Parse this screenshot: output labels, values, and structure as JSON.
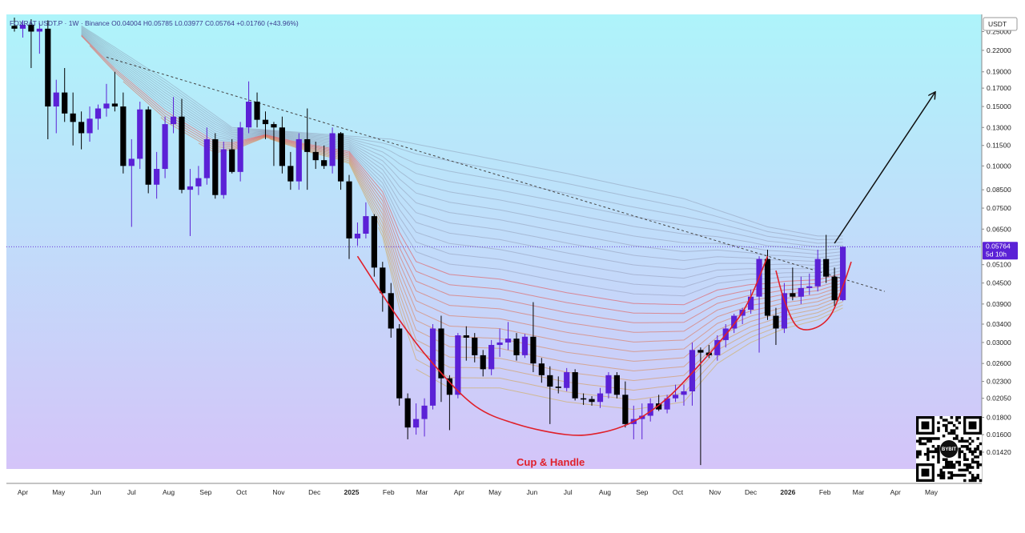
{
  "legend": {
    "symbol": "FOXRAT USDT.P",
    "timeframe": "1W",
    "exchange": "Binance",
    "open": "0.04004",
    "high": "0.05785",
    "low": "0.03977",
    "close": "0.05764",
    "change": "+0.01760 (+43.96%)"
  },
  "price_axis": {
    "unit": "USDT",
    "last_price": "0.05764",
    "countdown": "5d 10h"
  },
  "annotation": {
    "pattern_label": "Cup & Handle"
  },
  "qr_badge": {
    "logo_text": "BYBIT"
  },
  "colors": {
    "bull": "#5b21d6",
    "bear": "#000000",
    "bg_top": "#aef4fa",
    "bg_bottom": "#d4c4f9",
    "cup_curve": "#e0202a",
    "trendline": "#444444",
    "last_price_tag": "#5b21d6"
  },
  "chart_data": {
    "type": "candlestick",
    "interval": "1W",
    "x_start": "2024-03-25",
    "y_scale": "log",
    "y_range": [
      0.0128,
      0.275
    ],
    "grid": false,
    "y_ticks": [
      "0.25000",
      "0.22000",
      "0.19000",
      "0.17000",
      "0.15000",
      "0.13000",
      "0.11500",
      "0.10000",
      "0.08500",
      "0.07500",
      "0.06500",
      "0.05100",
      "0.04500",
      "0.03900",
      "0.03400",
      "0.03000",
      "0.02600",
      "0.02300",
      "0.02050",
      "0.01800",
      "0.01600",
      "0.01420"
    ],
    "x_ticks": [
      {
        "label": "Apr",
        "date": "2024-04-01",
        "bold": false
      },
      {
        "label": "May",
        "date": "2024-05-01",
        "bold": false
      },
      {
        "label": "Jun",
        "date": "2024-06-01",
        "bold": false
      },
      {
        "label": "Jul",
        "date": "2024-07-01",
        "bold": false
      },
      {
        "label": "Aug",
        "date": "2024-08-01",
        "bold": false
      },
      {
        "label": "Sep",
        "date": "2024-09-01",
        "bold": false
      },
      {
        "label": "Oct",
        "date": "2024-10-01",
        "bold": false
      },
      {
        "label": "Nov",
        "date": "2024-11-01",
        "bold": false
      },
      {
        "label": "Dec",
        "date": "2024-12-01",
        "bold": false
      },
      {
        "label": "2025",
        "date": "2025-01-01",
        "bold": true
      },
      {
        "label": "Feb",
        "date": "2025-02-01",
        "bold": false
      },
      {
        "label": "Mar",
        "date": "2025-03-01",
        "bold": false
      },
      {
        "label": "Apr",
        "date": "2025-04-01",
        "bold": false
      },
      {
        "label": "May",
        "date": "2025-05-01",
        "bold": false
      },
      {
        "label": "Jun",
        "date": "2025-06-01",
        "bold": false
      },
      {
        "label": "Jul",
        "date": "2025-07-01",
        "bold": false
      },
      {
        "label": "Aug",
        "date": "2025-08-01",
        "bold": false
      },
      {
        "label": "Sep",
        "date": "2025-09-01",
        "bold": false
      },
      {
        "label": "Oct",
        "date": "2025-10-01",
        "bold": false
      },
      {
        "label": "Nov",
        "date": "2025-11-01",
        "bold": false
      },
      {
        "label": "Dec",
        "date": "2025-12-01",
        "bold": false
      },
      {
        "label": "2026",
        "date": "2026-01-01",
        "bold": true
      },
      {
        "label": "Feb",
        "date": "2026-02-01",
        "bold": false
      },
      {
        "label": "Mar",
        "date": "2026-03-01",
        "bold": false
      },
      {
        "label": "Apr",
        "date": "2026-04-01",
        "bold": false
      },
      {
        "label": "May",
        "date": "2026-05-01",
        "bold": false
      }
    ],
    "candles": [
      {
        "o": 0.26,
        "h": 0.275,
        "l": 0.25,
        "c": 0.255
      },
      {
        "o": 0.255,
        "h": 0.27,
        "l": 0.24,
        "c": 0.262
      },
      {
        "o": 0.262,
        "h": 0.272,
        "l": 0.195,
        "c": 0.25
      },
      {
        "o": 0.25,
        "h": 0.265,
        "l": 0.215,
        "c": 0.255
      },
      {
        "o": 0.255,
        "h": 0.27,
        "l": 0.12,
        "c": 0.15
      },
      {
        "o": 0.15,
        "h": 0.18,
        "l": 0.125,
        "c": 0.165
      },
      {
        "o": 0.165,
        "h": 0.195,
        "l": 0.135,
        "c": 0.143
      },
      {
        "o": 0.143,
        "h": 0.165,
        "l": 0.115,
        "c": 0.135
      },
      {
        "o": 0.135,
        "h": 0.145,
        "l": 0.112,
        "c": 0.125
      },
      {
        "o": 0.125,
        "h": 0.15,
        "l": 0.118,
        "c": 0.138
      },
      {
        "o": 0.138,
        "h": 0.152,
        "l": 0.128,
        "c": 0.148
      },
      {
        "o": 0.148,
        "h": 0.175,
        "l": 0.14,
        "c": 0.153
      },
      {
        "o": 0.153,
        "h": 0.19,
        "l": 0.145,
        "c": 0.15
      },
      {
        "o": 0.15,
        "h": 0.165,
        "l": 0.095,
        "c": 0.1
      },
      {
        "o": 0.1,
        "h": 0.12,
        "l": 0.066,
        "c": 0.105
      },
      {
        "o": 0.105,
        "h": 0.155,
        "l": 0.098,
        "c": 0.147
      },
      {
        "o": 0.147,
        "h": 0.15,
        "l": 0.083,
        "c": 0.088
      },
      {
        "o": 0.088,
        "h": 0.11,
        "l": 0.08,
        "c": 0.098
      },
      {
        "o": 0.098,
        "h": 0.14,
        "l": 0.092,
        "c": 0.133
      },
      {
        "o": 0.133,
        "h": 0.16,
        "l": 0.125,
        "c": 0.14
      },
      {
        "o": 0.14,
        "h": 0.158,
        "l": 0.083,
        "c": 0.085
      },
      {
        "o": 0.085,
        "h": 0.098,
        "l": 0.062,
        "c": 0.087
      },
      {
        "o": 0.087,
        "h": 0.1,
        "l": 0.082,
        "c": 0.092
      },
      {
        "o": 0.092,
        "h": 0.13,
        "l": 0.088,
        "c": 0.12
      },
      {
        "o": 0.12,
        "h": 0.125,
        "l": 0.08,
        "c": 0.082
      },
      {
        "o": 0.082,
        "h": 0.118,
        "l": 0.08,
        "c": 0.112
      },
      {
        "o": 0.112,
        "h": 0.12,
        "l": 0.095,
        "c": 0.096
      },
      {
        "o": 0.096,
        "h": 0.135,
        "l": 0.09,
        "c": 0.13
      },
      {
        "o": 0.13,
        "h": 0.178,
        "l": 0.125,
        "c": 0.155
      },
      {
        "o": 0.155,
        "h": 0.165,
        "l": 0.13,
        "c": 0.137
      },
      {
        "o": 0.137,
        "h": 0.145,
        "l": 0.12,
        "c": 0.133
      },
      {
        "o": 0.133,
        "h": 0.135,
        "l": 0.1,
        "c": 0.13
      },
      {
        "o": 0.13,
        "h": 0.14,
        "l": 0.095,
        "c": 0.1
      },
      {
        "o": 0.1,
        "h": 0.11,
        "l": 0.085,
        "c": 0.09
      },
      {
        "o": 0.09,
        "h": 0.125,
        "l": 0.085,
        "c": 0.12
      },
      {
        "o": 0.12,
        "h": 0.148,
        "l": 0.085,
        "c": 0.11
      },
      {
        "o": 0.11,
        "h": 0.118,
        "l": 0.098,
        "c": 0.104
      },
      {
        "o": 0.104,
        "h": 0.115,
        "l": 0.098,
        "c": 0.1
      },
      {
        "o": 0.1,
        "h": 0.13,
        "l": 0.095,
        "c": 0.125
      },
      {
        "o": 0.125,
        "h": 0.126,
        "l": 0.085,
        "c": 0.09
      },
      {
        "o": 0.09,
        "h": 0.094,
        "l": 0.053,
        "c": 0.061
      },
      {
        "o": 0.061,
        "h": 0.068,
        "l": 0.058,
        "c": 0.063
      },
      {
        "o": 0.063,
        "h": 0.078,
        "l": 0.061,
        "c": 0.071
      },
      {
        "o": 0.071,
        "h": 0.072,
        "l": 0.047,
        "c": 0.05
      },
      {
        "o": 0.05,
        "h": 0.052,
        "l": 0.037,
        "c": 0.042
      },
      {
        "o": 0.042,
        "h": 0.045,
        "l": 0.031,
        "c": 0.033
      },
      {
        "o": 0.033,
        "h": 0.034,
        "l": 0.0195,
        "c": 0.0205
      },
      {
        "o": 0.0205,
        "h": 0.0212,
        "l": 0.0155,
        "c": 0.0168
      },
      {
        "o": 0.0168,
        "h": 0.0198,
        "l": 0.016,
        "c": 0.0178
      },
      {
        "o": 0.0178,
        "h": 0.0205,
        "l": 0.0158,
        "c": 0.0195
      },
      {
        "o": 0.0195,
        "h": 0.034,
        "l": 0.019,
        "c": 0.033
      },
      {
        "o": 0.033,
        "h": 0.036,
        "l": 0.02,
        "c": 0.0235
      },
      {
        "o": 0.0235,
        "h": 0.024,
        "l": 0.0165,
        "c": 0.021
      },
      {
        "o": 0.021,
        "h": 0.032,
        "l": 0.0205,
        "c": 0.0315
      },
      {
        "o": 0.0315,
        "h": 0.0335,
        "l": 0.0265,
        "c": 0.031
      },
      {
        "o": 0.031,
        "h": 0.032,
        "l": 0.0262,
        "c": 0.0275
      },
      {
        "o": 0.0275,
        "h": 0.0285,
        "l": 0.0238,
        "c": 0.025
      },
      {
        "o": 0.025,
        "h": 0.0305,
        "l": 0.024,
        "c": 0.0295
      },
      {
        "o": 0.0295,
        "h": 0.033,
        "l": 0.0272,
        "c": 0.03
      },
      {
        "o": 0.03,
        "h": 0.0345,
        "l": 0.0285,
        "c": 0.0308
      },
      {
        "o": 0.0308,
        "h": 0.032,
        "l": 0.0265,
        "c": 0.0275
      },
      {
        "o": 0.0275,
        "h": 0.0318,
        "l": 0.027,
        "c": 0.0312
      },
      {
        "o": 0.0312,
        "h": 0.0395,
        "l": 0.0245,
        "c": 0.026
      },
      {
        "o": 0.026,
        "h": 0.027,
        "l": 0.0228,
        "c": 0.024
      },
      {
        "o": 0.024,
        "h": 0.0255,
        "l": 0.0172,
        "c": 0.0222
      },
      {
        "o": 0.0222,
        "h": 0.0238,
        "l": 0.0212,
        "c": 0.022
      },
      {
        "o": 0.022,
        "h": 0.0252,
        "l": 0.0215,
        "c": 0.0245
      },
      {
        "o": 0.0245,
        "h": 0.025,
        "l": 0.0202,
        "c": 0.0205
      },
      {
        "o": 0.0205,
        "h": 0.0212,
        "l": 0.0196,
        "c": 0.0204
      },
      {
        "o": 0.0204,
        "h": 0.0208,
        "l": 0.0195,
        "c": 0.02
      },
      {
        "o": 0.02,
        "h": 0.022,
        "l": 0.0192,
        "c": 0.0212
      },
      {
        "o": 0.0212,
        "h": 0.0245,
        "l": 0.0205,
        "c": 0.024
      },
      {
        "o": 0.024,
        "h": 0.0245,
        "l": 0.0205,
        "c": 0.021
      },
      {
        "o": 0.021,
        "h": 0.023,
        "l": 0.0168,
        "c": 0.0172
      },
      {
        "o": 0.0172,
        "h": 0.0195,
        "l": 0.0155,
        "c": 0.0178
      },
      {
        "o": 0.0178,
        "h": 0.0198,
        "l": 0.0155,
        "c": 0.0182
      },
      {
        "o": 0.0182,
        "h": 0.0205,
        "l": 0.0175,
        "c": 0.0198
      },
      {
        "o": 0.0198,
        "h": 0.021,
        "l": 0.0188,
        "c": 0.019
      },
      {
        "o": 0.019,
        "h": 0.021,
        "l": 0.0185,
        "c": 0.0205
      },
      {
        "o": 0.0205,
        "h": 0.0225,
        "l": 0.02,
        "c": 0.021
      },
      {
        "o": 0.021,
        "h": 0.0225,
        "l": 0.0195,
        "c": 0.0215
      },
      {
        "o": 0.0215,
        "h": 0.03,
        "l": 0.0195,
        "c": 0.0285
      },
      {
        "o": 0.0285,
        "h": 0.029,
        "l": 0.013,
        "c": 0.028
      },
      {
        "o": 0.028,
        "h": 0.0295,
        "l": 0.027,
        "c": 0.0275
      },
      {
        "o": 0.0275,
        "h": 0.0315,
        "l": 0.0265,
        "c": 0.0305
      },
      {
        "o": 0.0305,
        "h": 0.034,
        "l": 0.029,
        "c": 0.033
      },
      {
        "o": 0.033,
        "h": 0.0365,
        "l": 0.032,
        "c": 0.036
      },
      {
        "o": 0.036,
        "h": 0.038,
        "l": 0.034,
        "c": 0.0375
      },
      {
        "o": 0.0375,
        "h": 0.043,
        "l": 0.0365,
        "c": 0.041
      },
      {
        "o": 0.041,
        "h": 0.054,
        "l": 0.028,
        "c": 0.053
      },
      {
        "o": 0.053,
        "h": 0.0565,
        "l": 0.035,
        "c": 0.036
      },
      {
        "o": 0.036,
        "h": 0.038,
        "l": 0.0295,
        "c": 0.033
      },
      {
        "o": 0.033,
        "h": 0.045,
        "l": 0.032,
        "c": 0.042
      },
      {
        "o": 0.042,
        "h": 0.05,
        "l": 0.04,
        "c": 0.041
      },
      {
        "o": 0.041,
        "h": 0.047,
        "l": 0.039,
        "c": 0.0435
      },
      {
        "o": 0.0435,
        "h": 0.048,
        "l": 0.0415,
        "c": 0.044
      },
      {
        "o": 0.044,
        "h": 0.0565,
        "l": 0.0425,
        "c": 0.053
      },
      {
        "o": 0.053,
        "h": 0.0625,
        "l": 0.045,
        "c": 0.047
      },
      {
        "o": 0.047,
        "h": 0.05,
        "l": 0.0385,
        "c": 0.04
      },
      {
        "o": 0.04004,
        "h": 0.05785,
        "l": 0.03977,
        "c": 0.05764
      }
    ],
    "ribbon": {
      "top_points": [
        [
          7,
          0.27
        ],
        [
          18,
          0.18
        ],
        [
          26,
          0.13
        ],
        [
          30,
          0.128
        ],
        [
          45,
          0.12
        ],
        [
          66,
          0.095
        ],
        [
          80,
          0.08
        ],
        [
          90,
          0.066
        ],
        [
          96,
          0.062
        ],
        [
          100,
          0.062
        ]
      ],
      "bottom_points": [
        [
          8,
          0.23
        ],
        [
          12,
          0.17
        ],
        [
          18,
          0.12
        ],
        [
          24,
          0.1
        ],
        [
          30,
          0.12
        ],
        [
          34,
          0.11
        ],
        [
          40,
          0.1
        ],
        [
          44,
          0.06
        ],
        [
          46,
          0.036
        ],
        [
          48,
          0.025
        ],
        [
          52,
          0.022
        ],
        [
          58,
          0.022
        ],
        [
          66,
          0.02
        ],
        [
          74,
          0.019
        ],
        [
          80,
          0.02
        ],
        [
          84,
          0.026
        ],
        [
          88,
          0.03
        ],
        [
          92,
          0.033
        ],
        [
          96,
          0.035
        ],
        [
          100,
          0.039
        ]
      ],
      "red_band_start_index": 52,
      "line_count": 24
    },
    "cup_curve_points": [
      [
        41,
        0.054
      ],
      [
        46,
        0.035
      ],
      [
        50,
        0.026
      ],
      [
        55,
        0.0195
      ],
      [
        60,
        0.0172
      ],
      [
        66,
        0.016
      ],
      [
        70,
        0.0162
      ],
      [
        74,
        0.0175
      ],
      [
        78,
        0.0205
      ],
      [
        82,
        0.026
      ],
      [
        86,
        0.034
      ],
      [
        88,
        0.041
      ],
      [
        90,
        0.054
      ]
    ],
    "handle_curve_points": [
      [
        91,
        0.049
      ],
      [
        92,
        0.04
      ],
      [
        93.5,
        0.0335
      ],
      [
        95.5,
        0.033
      ],
      [
        97.5,
        0.036
      ],
      [
        99,
        0.044
      ],
      [
        100,
        0.052
      ]
    ],
    "trendline": {
      "from": [
        11,
        0.21
      ],
      "to": [
        104,
        0.0425
      ]
    },
    "projection_arrow": {
      "from": [
        98,
        0.059
      ],
      "to": [
        110,
        0.165
      ]
    }
  }
}
